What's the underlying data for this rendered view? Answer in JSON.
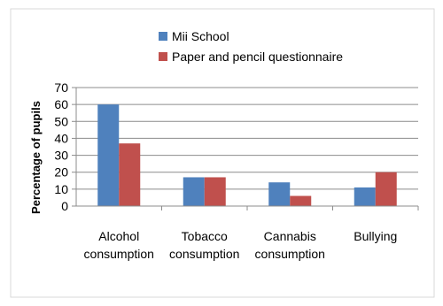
{
  "chart_data": {
    "type": "bar",
    "categories": [
      [
        "Alcohol",
        "consumption"
      ],
      [
        "Tobacco",
        "consumption"
      ],
      [
        "Cannabis",
        "consumption"
      ],
      [
        "Bullying"
      ]
    ],
    "series": [
      {
        "name": "Mii School",
        "values": [
          60,
          17,
          14,
          11
        ],
        "color": "#4f81bd"
      },
      {
        "name": "Paper and pencil questionnaire",
        "values": [
          37,
          17,
          6,
          20
        ],
        "color": "#c0504d"
      }
    ],
    "title": "",
    "xlabel": "",
    "ylabel": "Percentage of pupils",
    "ylim": [
      0,
      70
    ],
    "yticks": [
      0,
      10,
      20,
      30,
      40,
      50,
      60,
      70
    ],
    "grid": true,
    "legend_position": "top"
  }
}
